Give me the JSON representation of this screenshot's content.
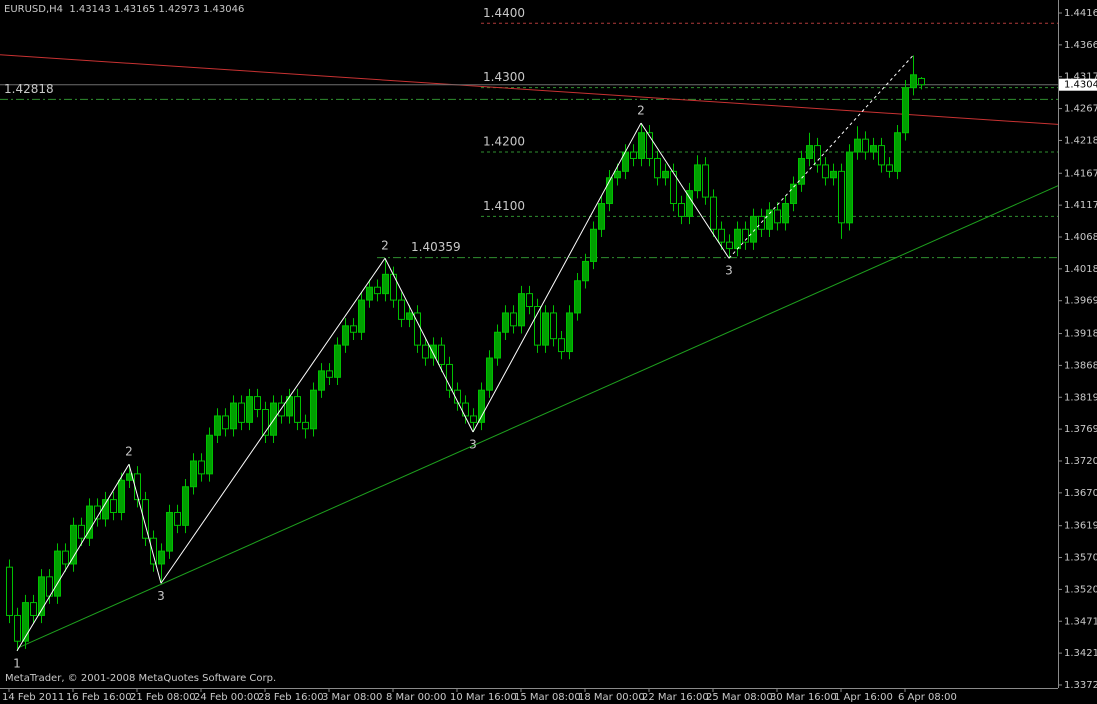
{
  "chart_data": {
    "type": "candlestick",
    "title": "EURUSD,H4  1.43143 1.43165 1.42973 1.43046",
    "footer": "MetaTrader, © 2001-2008 MetaQuotes Software Corp.",
    "up_color": "#00a000",
    "down_color": "#000000",
    "wick_color": "#00c000",
    "bid_line_color": "#6e6e6e",
    "ylim": [
      1.33673,
      1.44362
    ],
    "yticks": [
      {
        "value": 1.4416,
        "label": "1.44160"
      },
      {
        "value": 1.43665,
        "label": "1.43665"
      },
      {
        "value": 1.4317,
        "label": "1.43170"
      },
      {
        "value": 1.42675,
        "label": "1.42675"
      },
      {
        "value": 1.4218,
        "label": "1.42180"
      },
      {
        "value": 1.4167,
        "label": "1.41670"
      },
      {
        "value": 1.41175,
        "label": "1.41175"
      },
      {
        "value": 1.4068,
        "label": "1.40680"
      },
      {
        "value": 1.40185,
        "label": "1.40185"
      },
      {
        "value": 1.3969,
        "label": "1.39690"
      },
      {
        "value": 1.3918,
        "label": "1.39180"
      },
      {
        "value": 1.38685,
        "label": "1.38685"
      },
      {
        "value": 1.3819,
        "label": "1.38190"
      },
      {
        "value": 1.37695,
        "label": "1.37695"
      },
      {
        "value": 1.372,
        "label": "1.37200"
      },
      {
        "value": 1.36705,
        "label": "1.36705"
      },
      {
        "value": 1.36195,
        "label": "1.36195"
      },
      {
        "value": 1.357,
        "label": "1.35700"
      },
      {
        "value": 1.35205,
        "label": "1.35205"
      },
      {
        "value": 1.3471,
        "label": "1.34710"
      },
      {
        "value": 1.34215,
        "label": "1.34215"
      },
      {
        "value": 1.3372,
        "label": "1.33720"
      }
    ],
    "xticks": [
      {
        "value": 0,
        "label": "14 Feb 2011"
      },
      {
        "value": 8,
        "label": "16 Feb 16:00"
      },
      {
        "value": 16,
        "label": "21 Feb 08:00"
      },
      {
        "value": 24,
        "label": "24 Feb 00:00"
      },
      {
        "value": 32,
        "label": "28 Feb 16:00"
      },
      {
        "value": 40,
        "label": "3 Mar 08:00"
      },
      {
        "value": 48,
        "label": "8 Mar 00:00"
      },
      {
        "value": 56,
        "label": "10 Mar 16:00"
      },
      {
        "value": 64,
        "label": "15 Mar 08:00"
      },
      {
        "value": 72,
        "label": "18 Mar 00:00"
      },
      {
        "value": 80,
        "label": "22 Mar 16:00"
      },
      {
        "value": 88,
        "label": "25 Mar 08:00"
      },
      {
        "value": 96,
        "label": "30 Mar 16:00"
      },
      {
        "value": 104,
        "label": "1 Apr 16:00"
      },
      {
        "value": 112,
        "label": "6 Apr 08:00"
      }
    ],
    "open": [
      1.3555,
      1.348,
      1.344,
      1.35,
      1.348,
      1.354,
      1.351,
      1.358,
      1.356,
      1.362,
      1.36,
      1.365,
      1.363,
      1.366,
      1.364,
      1.369,
      1.37,
      1.366,
      1.36,
      1.356,
      1.358,
      1.364,
      1.362,
      1.368,
      1.372,
      1.37,
      1.376,
      1.379,
      1.377,
      1.381,
      1.378,
      1.382,
      1.38,
      1.376,
      1.381,
      1.379,
      1.382,
      1.378,
      1.377,
      1.383,
      1.386,
      1.385,
      1.39,
      1.393,
      1.392,
      1.397,
      1.399,
      1.398,
      1.401,
      1.397,
      1.394,
      1.395,
      1.39,
      1.388,
      1.39,
      1.387,
      1.383,
      1.381,
      1.379,
      1.378,
      1.383,
      1.388,
      1.392,
      1.395,
      1.393,
      1.398,
      1.396,
      1.39,
      1.395,
      1.391,
      1.389,
      1.395,
      1.4,
      1.403,
      1.408,
      1.412,
      1.416,
      1.417,
      1.42,
      1.419,
      1.423,
      1.419,
      1.416,
      1.417,
      1.412,
      1.41,
      1.414,
      1.418,
      1.413,
      1.408,
      1.406,
      1.405,
      1.408,
      1.406,
      1.41,
      1.408,
      1.411,
      1.409,
      1.412,
      1.415,
      1.419,
      1.421,
      1.418,
      1.416,
      1.417,
      1.409,
      1.42,
      1.422,
      1.42,
      1.421,
      1.418,
      1.417,
      1.423,
      1.43,
      1.43143
    ],
    "high": [
      1.3567,
      1.3492,
      1.3512,
      1.3512,
      1.3552,
      1.3552,
      1.3592,
      1.3592,
      1.3632,
      1.3632,
      1.3662,
      1.3662,
      1.3672,
      1.3672,
      1.3702,
      1.3715,
      1.3712,
      1.3672,
      1.3612,
      1.3592,
      1.3652,
      1.3652,
      1.3692,
      1.3732,
      1.3732,
      1.3772,
      1.3802,
      1.3802,
      1.3822,
      1.3822,
      1.3832,
      1.3832,
      1.3812,
      1.3822,
      1.3822,
      1.3832,
      1.3832,
      1.3792,
      1.3842,
      1.3872,
      1.3872,
      1.3912,
      1.3942,
      1.3942,
      1.3982,
      1.4002,
      1.4002,
      1.4035,
      1.4022,
      1.3982,
      1.3962,
      1.3962,
      1.3912,
      1.3912,
      1.3912,
      1.3882,
      1.3842,
      1.3822,
      1.3802,
      1.3842,
      1.3892,
      1.3932,
      1.3962,
      1.3962,
      1.3992,
      1.3992,
      1.3972,
      1.3962,
      1.3962,
      1.3922,
      1.3962,
      1.4012,
      1.4042,
      1.4092,
      1.4132,
      1.4172,
      1.4182,
      1.4212,
      1.4212,
      1.4245,
      1.4242,
      1.4202,
      1.4182,
      1.4182,
      1.4132,
      1.4152,
      1.4195,
      1.4192,
      1.4142,
      1.4092,
      1.4072,
      1.4092,
      1.4092,
      1.4112,
      1.4112,
      1.4122,
      1.4122,
      1.4132,
      1.4162,
      1.4202,
      1.423,
      1.4222,
      1.4192,
      1.4182,
      1.4182,
      1.4212,
      1.424,
      1.4232,
      1.4222,
      1.4222,
      1.4192,
      1.4242,
      1.4312,
      1.435,
      1.43165
    ],
    "low": [
      1.3468,
      1.3425,
      1.3428,
      1.3468,
      1.3468,
      1.3498,
      1.3498,
      1.3548,
      1.3548,
      1.3588,
      1.3588,
      1.3618,
      1.3618,
      1.3628,
      1.3628,
      1.3678,
      1.3648,
      1.3588,
      1.3548,
      1.353,
      1.3568,
      1.3608,
      1.3608,
      1.3668,
      1.3688,
      1.3688,
      1.3748,
      1.3758,
      1.3758,
      1.3768,
      1.3768,
      1.3788,
      1.3748,
      1.3748,
      1.3778,
      1.3778,
      1.3768,
      1.3755,
      1.3758,
      1.3818,
      1.3838,
      1.3838,
      1.3888,
      1.3908,
      1.3908,
      1.3958,
      1.3968,
      1.3968,
      1.3958,
      1.3928,
      1.3928,
      1.3888,
      1.3868,
      1.3868,
      1.3858,
      1.3818,
      1.3798,
      1.3778,
      1.3765,
      1.3768,
      1.3818,
      1.3868,
      1.3908,
      1.3918,
      1.3918,
      1.3948,
      1.3888,
      1.3888,
      1.3898,
      1.3878,
      1.3878,
      1.3938,
      1.3988,
      1.4018,
      1.4068,
      1.4108,
      1.4148,
      1.4158,
      1.4178,
      1.4178,
      1.4178,
      1.4148,
      1.4148,
      1.4108,
      1.4088,
      1.4088,
      1.4128,
      1.4118,
      1.4068,
      1.4048,
      1.4035,
      1.4038,
      1.4048,
      1.4048,
      1.4068,
      1.4068,
      1.4078,
      1.4078,
      1.4108,
      1.4138,
      1.4178,
      1.4168,
      1.4148,
      1.4148,
      1.4065,
      1.4078,
      1.4188,
      1.4188,
      1.4188,
      1.4168,
      1.416,
      1.4158,
      1.4218,
      1.4288,
      1.42973
    ],
    "close": [
      1.348,
      1.344,
      1.35,
      1.348,
      1.354,
      1.351,
      1.358,
      1.356,
      1.362,
      1.36,
      1.365,
      1.363,
      1.366,
      1.364,
      1.369,
      1.37,
      1.366,
      1.36,
      1.356,
      1.358,
      1.364,
      1.362,
      1.368,
      1.372,
      1.37,
      1.376,
      1.379,
      1.377,
      1.381,
      1.378,
      1.382,
      1.38,
      1.376,
      1.381,
      1.379,
      1.382,
      1.378,
      1.377,
      1.383,
      1.386,
      1.385,
      1.39,
      1.393,
      1.392,
      1.397,
      1.399,
      1.398,
      1.401,
      1.397,
      1.394,
      1.395,
      1.39,
      1.388,
      1.39,
      1.387,
      1.383,
      1.381,
      1.379,
      1.378,
      1.383,
      1.388,
      1.392,
      1.395,
      1.393,
      1.398,
      1.396,
      1.39,
      1.395,
      1.391,
      1.389,
      1.395,
      1.4,
      1.403,
      1.408,
      1.412,
      1.416,
      1.417,
      1.42,
      1.419,
      1.423,
      1.419,
      1.416,
      1.417,
      1.412,
      1.41,
      1.414,
      1.418,
      1.413,
      1.408,
      1.406,
      1.405,
      1.408,
      1.406,
      1.41,
      1.408,
      1.411,
      1.409,
      1.412,
      1.415,
      1.419,
      1.421,
      1.418,
      1.416,
      1.417,
      1.409,
      1.42,
      1.422,
      1.42,
      1.421,
      1.418,
      1.417,
      1.423,
      1.43,
      1.432,
      1.43046
    ],
    "levels": [
      {
        "value": 1.44,
        "label": "1.4400",
        "color": "#b03a3a",
        "style": "dash",
        "start": 59
      },
      {
        "value": 1.43,
        "label": "1.4300",
        "color": "#2f8f2f",
        "style": "dash",
        "start": 59
      },
      {
        "value": 1.42,
        "label": "1.4200",
        "color": "#2f8f2f",
        "style": "dash",
        "start": 59
      },
      {
        "value": 1.41,
        "label": "1.4100",
        "color": "#2f8f2f",
        "style": "dash",
        "start": 59
      },
      {
        "value": 1.42818,
        "color": "#2f8f2f",
        "style": "dashdot"
      },
      {
        "value": 1.40359,
        "color": "#2f8f2f",
        "style": "dashdot",
        "start": 46
      }
    ],
    "trendlines": [
      {
        "color": "#c83232",
        "x0": -1,
        "p0": 1.4351,
        "x1": 131,
        "p1": 1.4243
      },
      {
        "color": "#1ea01e",
        "x0": 1,
        "p0": 1.3429,
        "x1": 131,
        "p1": 1.4147
      }
    ],
    "waves": [
      {
        "x": 1,
        "price": 1.3425,
        "label": "1"
      },
      {
        "x": 15,
        "price": 1.3715,
        "label": "2",
        "line": "solid"
      },
      {
        "x": 19,
        "price": 1.353,
        "label": "3",
        "line": "solid"
      },
      {
        "x": 47,
        "price": 1.4035,
        "label": "2",
        "line": "solid"
      },
      {
        "x": 58,
        "price": 1.3765,
        "label": "3",
        "line": "solid"
      },
      {
        "x": 79,
        "price": 1.4245,
        "label": "2",
        "line": "solid"
      },
      {
        "x": 90,
        "price": 1.4035,
        "label": "3",
        "line": "solid"
      },
      {
        "x": 113,
        "price": 1.435,
        "label": null,
        "line": "dashed"
      }
    ]
  }
}
